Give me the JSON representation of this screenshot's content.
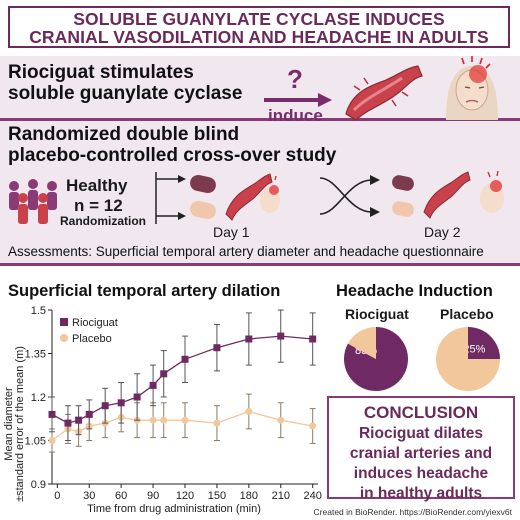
{
  "title": {
    "line1": "SOLUBLE GUANYLATE CYCLASE INDUCES",
    "line2": "CRANIAL VASODILATION AND HEADACHE IN ADULTS"
  },
  "mechanism": {
    "line1": "Riociguat stimulates",
    "line2": "soluble guanylate cyclase",
    "question": "?",
    "induce": "induce"
  },
  "study": {
    "line1": "Randomized double blind",
    "line2": "placebo-controlled cross-over study",
    "healthy": "Healthy",
    "n": "n = 12",
    "randomization": "Randomization",
    "day1": "Day 1",
    "day2": "Day 2",
    "assessments": "Assessments: Superficial temporal artery diameter and headache questionnaire"
  },
  "dilation": {
    "title": "Superficial temporal artery dilation"
  },
  "headache": {
    "title": "Headache Induction",
    "riociguat_label": "Riociguat",
    "placebo_label": "Placebo",
    "riociguat_pct": "83%",
    "placebo_pct": "25%"
  },
  "conclusion": {
    "head": "CONCLUSION",
    "line1": "Riociguat dilates",
    "line2": "cranial arteries and",
    "line3": "induces headache",
    "line4": "in healthy adults"
  },
  "credit": "Created in BioRender. https://BioRender.com/yiexv6t",
  "colors": {
    "riociguat": "#6f2a63",
    "placebo": "#f2c79b",
    "accent": "#7a2b6b",
    "band": "#f1e7ee"
  },
  "chart_data": [
    {
      "type": "line",
      "title": "Superficial temporal artery dilation",
      "xlabel": "Time from drug administration (min)",
      "ylabel": "Mean diameter ±standard error of the mean (m)",
      "xlim": [
        -5,
        245
      ],
      "ylim": [
        0.9,
        1.5
      ],
      "xticks": [
        0,
        30,
        60,
        90,
        120,
        150,
        180,
        210,
        240
      ],
      "yticks": [
        0.9,
        1.05,
        1.2,
        1.35,
        1.5
      ],
      "ytick_labels": [
        "0.9",
        "1.05",
        "1.2",
        "1.35",
        "1.5"
      ],
      "legend_position": "top-left",
      "series": [
        {
          "name": "Riociguat",
          "color": "#6f2a63",
          "marker": "square",
          "x": [
            -10,
            10,
            20,
            30,
            45,
            60,
            75,
            90,
            100,
            120,
            150,
            180,
            210,
            240
          ],
          "y": [
            1.14,
            1.11,
            1.12,
            1.14,
            1.17,
            1.18,
            1.2,
            1.24,
            1.28,
            1.33,
            1.37,
            1.4,
            1.41,
            1.4
          ],
          "err": [
            0.06,
            0.06,
            0.05,
            0.05,
            0.06,
            0.07,
            0.08,
            0.07,
            0.08,
            0.08,
            0.08,
            0.09,
            0.09,
            0.09
          ]
        },
        {
          "name": "Placebo",
          "color": "#f2c79b",
          "marker": "circle",
          "x": [
            -10,
            10,
            20,
            30,
            45,
            60,
            75,
            90,
            100,
            120,
            150,
            180,
            210,
            240
          ],
          "y": [
            1.05,
            1.09,
            1.08,
            1.1,
            1.11,
            1.13,
            1.12,
            1.12,
            1.12,
            1.12,
            1.11,
            1.15,
            1.12,
            1.1
          ],
          "err": [
            0.04,
            0.05,
            0.05,
            0.05,
            0.05,
            0.05,
            0.06,
            0.06,
            0.06,
            0.06,
            0.06,
            0.06,
            0.06,
            0.06
          ]
        }
      ]
    },
    {
      "type": "pie",
      "title": "Riociguat",
      "values": [
        83,
        17
      ],
      "labels": [
        "83%",
        ""
      ],
      "colors": [
        "#6f2a63",
        "#f2c79b"
      ]
    },
    {
      "type": "pie",
      "title": "Placebo",
      "values": [
        25,
        75
      ],
      "labels": [
        "25%",
        ""
      ],
      "colors": [
        "#6f2a63",
        "#f2c79b"
      ]
    }
  ]
}
